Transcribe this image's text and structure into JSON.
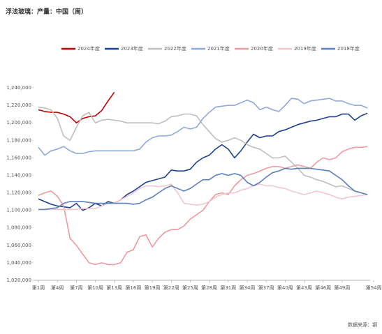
{
  "chart_data": {
    "type": "line",
    "title": "浮法玻璃：产量：中国（周）",
    "source": "数据来源：钢",
    "categories": [
      "第1周",
      null,
      null,
      "第4周",
      null,
      null,
      "第7周",
      null,
      null,
      "第10周",
      null,
      null,
      "第13周",
      null,
      null,
      "第16周",
      null,
      null,
      "第19周",
      null,
      null,
      "第22周",
      null,
      null,
      "第25周",
      null,
      null,
      "第28周",
      null,
      null,
      "第31周",
      null,
      null,
      "第34周",
      null,
      null,
      "第37周",
      null,
      null,
      "第40周",
      null,
      null,
      "第43周",
      null,
      null,
      "第46周",
      null,
      null,
      "第49周",
      null,
      null,
      null,
      null,
      "第54周"
    ],
    "ylim": [
      1020000,
      1240000
    ],
    "yticks": [
      {
        "value": 1020000,
        "label": "1,020,000"
      },
      {
        "value": 1040000,
        "label": "1,040,000"
      },
      {
        "value": 1060000,
        "label": "1,060,000"
      },
      {
        "value": 1080000,
        "label": "1,080,000"
      },
      {
        "value": 1100000,
        "label": "1,100,000"
      },
      {
        "value": 1120000,
        "label": "1,120,000"
      },
      {
        "value": 1140000,
        "label": "1,140,000"
      },
      {
        "value": 1160000,
        "label": "1,160,000"
      },
      {
        "value": 1180000,
        "label": "1,180,000"
      },
      {
        "value": 1200000,
        "label": "1,200,000"
      },
      {
        "value": 1220000,
        "label": "1,220,000"
      },
      {
        "value": 1240000,
        "label": "1,240,000"
      }
    ],
    "grid": false,
    "legend": "top",
    "series": [
      {
        "name": "2024年度",
        "color": "#c00000",
        "values": [
          1215000,
          1213000,
          1212000,
          1212000,
          1210000,
          1207000,
          1200000,
          1205000,
          1207000,
          1208000,
          1214000,
          1225000,
          1235000,
          null,
          null,
          null,
          null,
          null,
          null,
          null,
          null,
          null,
          null,
          null,
          null,
          null,
          null,
          null,
          null,
          null,
          null,
          null,
          null,
          null,
          null,
          null,
          null,
          null,
          null,
          null,
          null,
          null,
          null,
          null,
          null,
          null,
          null,
          null,
          null,
          null,
          null,
          null,
          null,
          null
        ]
      },
      {
        "name": "2023年度",
        "color": "#1f3f8f",
        "values": [
          1113000,
          1110000,
          1107000,
          1105000,
          1104000,
          1103000,
          1108000,
          1100000,
          1103000,
          1108000,
          1105000,
          1110000,
          1108000,
          1112000,
          1118000,
          1122000,
          1127000,
          1132000,
          1134000,
          1136000,
          1138000,
          1146000,
          1145000,
          1145000,
          1147000,
          1155000,
          1160000,
          1163000,
          1170000,
          1175000,
          1170000,
          1160000,
          1168000,
          1178000,
          1187000,
          1183000,
          1185000,
          1185000,
          1190000,
          1192000,
          1195000,
          1198000,
          1200000,
          1202000,
          1203000,
          1205000,
          1207000,
          1207000,
          1210000,
          1210000,
          1203000,
          1208000,
          1211000,
          null
        ]
      },
      {
        "name": "2022年度",
        "color": "#bfbfbf",
        "values": [
          1218000,
          1217000,
          1215000,
          1205000,
          1185000,
          1180000,
          1195000,
          1208000,
          1212000,
          1200000,
          1203000,
          1204000,
          1203000,
          1202000,
          1200000,
          1200000,
          1200000,
          1200000,
          1200000,
          1199000,
          1202000,
          1207000,
          1208000,
          1210000,
          1210000,
          1208000,
          1198000,
          1190000,
          1182000,
          1178000,
          1180000,
          1183000,
          1180000,
          1175000,
          1172000,
          1170000,
          1165000,
          1160000,
          1160000,
          1162000,
          1155000,
          1148000,
          1140000,
          1138000,
          1135000,
          1133000,
          1130000,
          1127000,
          1128000,
          1125000,
          1122000,
          1120000,
          1118000,
          null
        ]
      },
      {
        "name": "2021年度",
        "color": "#8ea9db",
        "values": [
          1172000,
          1163000,
          1168000,
          1170000,
          1173000,
          1168000,
          1165000,
          1165000,
          1167000,
          1168000,
          1168000,
          1168000,
          1168000,
          1168000,
          1168000,
          1168000,
          1170000,
          1178000,
          1183000,
          1185000,
          1185000,
          1186000,
          1190000,
          1195000,
          1193000,
          1195000,
          1205000,
          1212000,
          1218000,
          1219000,
          1220000,
          1220000,
          1223000,
          1226000,
          1223000,
          1215000,
          1218000,
          1215000,
          1213000,
          1220000,
          1228000,
          1227000,
          1222000,
          1225000,
          1226000,
          1227000,
          1228000,
          1225000,
          1225000,
          1222000,
          1220000,
          1220000,
          1217000,
          null
        ]
      },
      {
        "name": "2020年度",
        "color": "#ee9a9f",
        "values": [
          1117000,
          1120000,
          1122000,
          1116000,
          1105000,
          1068000,
          1060000,
          1050000,
          1040000,
          1038000,
          1040000,
          1038000,
          1038000,
          1040000,
          1052000,
          1055000,
          1070000,
          1072000,
          1058000,
          1068000,
          1075000,
          1078000,
          1078000,
          1082000,
          1090000,
          1095000,
          1100000,
          1110000,
          1118000,
          1120000,
          1118000,
          1128000,
          1135000,
          1140000,
          1142000,
          1145000,
          1148000,
          1150000,
          1150000,
          1148000,
          1150000,
          1152000,
          1150000,
          1148000,
          1155000,
          1160000,
          1158000,
          1160000,
          1167000,
          1170000,
          1172000,
          1172000,
          1173000,
          null
        ]
      },
      {
        "name": "2019年度",
        "color": "#f2c6cf",
        "values": [
          1101000,
          1101000,
          1101000,
          1101000,
          1101000,
          1101000,
          1101000,
          1102000,
          1102000,
          1102000,
          1105000,
          1108000,
          1108000,
          1112000,
          1116000,
          1120000,
          1125000,
          1128000,
          1128000,
          1127000,
          1128000,
          1130000,
          1120000,
          1108000,
          1107000,
          1106000,
          1107000,
          1110000,
          1115000,
          1118000,
          1120000,
          1120000,
          1123000,
          1125000,
          1128000,
          1130000,
          1128000,
          1128000,
          1126000,
          1125000,
          1122000,
          1120000,
          1118000,
          1120000,
          1122000,
          1120000,
          1118000,
          1115000,
          1113000,
          1115000,
          1116000,
          1117000,
          1118000,
          null
        ]
      },
      {
        "name": "2018年度",
        "color": "#5b7fbf",
        "values": [
          1101000,
          1101000,
          1102000,
          1103000,
          1108000,
          1110000,
          1110000,
          1110000,
          1109000,
          1108000,
          1108000,
          1108000,
          1108000,
          1108000,
          1108000,
          1107000,
          1108000,
          1112000,
          1115000,
          1120000,
          1125000,
          1128000,
          1125000,
          1122000,
          1125000,
          1130000,
          1135000,
          1135000,
          1140000,
          1142000,
          1140000,
          1142000,
          1140000,
          1132000,
          1128000,
          1132000,
          1138000,
          1143000,
          1145000,
          1148000,
          1147000,
          1148000,
          1148000,
          1148000,
          1147000,
          1146000,
          1145000,
          1140000,
          1135000,
          1128000,
          1122000,
          1120000,
          1118000,
          null
        ]
      }
    ]
  }
}
